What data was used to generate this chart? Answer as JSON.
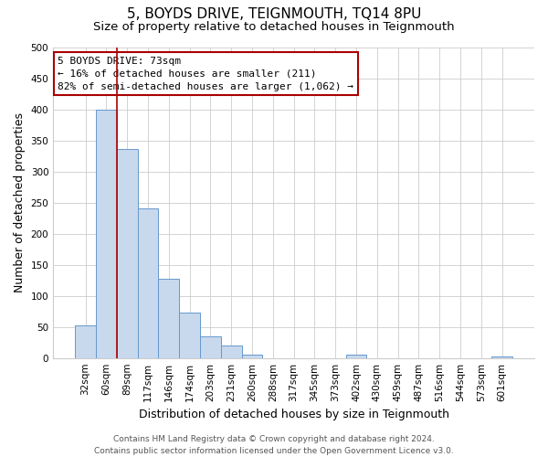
{
  "title": "5, BOYDS DRIVE, TEIGNMOUTH, TQ14 8PU",
  "subtitle": "Size of property relative to detached houses in Teignmouth",
  "xlabel": "Distribution of detached houses by size in Teignmouth",
  "ylabel": "Number of detached properties",
  "footer_line1": "Contains HM Land Registry data © Crown copyright and database right 2024.",
  "footer_line2": "Contains public sector information licensed under the Open Government Licence v3.0.",
  "bar_labels": [
    "32sqm",
    "60sqm",
    "89sqm",
    "117sqm",
    "146sqm",
    "174sqm",
    "203sqm",
    "231sqm",
    "260sqm",
    "288sqm",
    "317sqm",
    "345sqm",
    "373sqm",
    "402sqm",
    "430sqm",
    "459sqm",
    "487sqm",
    "516sqm",
    "544sqm",
    "573sqm",
    "601sqm"
  ],
  "bar_values": [
    53,
    400,
    336,
    240,
    128,
    73,
    35,
    20,
    6,
    0,
    0,
    0,
    0,
    6,
    0,
    0,
    0,
    0,
    0,
    0,
    3
  ],
  "bar_color": "#c8d8ed",
  "bar_edge_color": "#6699cc",
  "annotation_line1": "5 BOYDS DRIVE: 73sqm",
  "annotation_line2": "← 16% of detached houses are smaller (211)",
  "annotation_line3": "82% of semi-detached houses are larger (1,062) →",
  "annotation_box_color": "#ffffff",
  "annotation_box_edge_color": "#aa0000",
  "marker_line_color": "#aa0000",
  "ylim": [
    0,
    500
  ],
  "yticks": [
    0,
    50,
    100,
    150,
    200,
    250,
    300,
    350,
    400,
    450,
    500
  ],
  "background_color": "#ffffff",
  "grid_color": "#cccccc",
  "title_fontsize": 11,
  "subtitle_fontsize": 9.5,
  "axis_label_fontsize": 9,
  "tick_fontsize": 7.5,
  "annotation_fontsize": 8,
  "footer_fontsize": 6.5
}
